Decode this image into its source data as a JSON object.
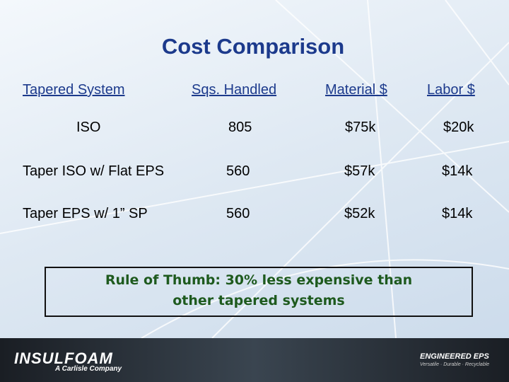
{
  "title": "Cost Comparison",
  "table": {
    "header": [
      "Tapered System",
      "Sqs. Handled",
      "Material $",
      "Labor $"
    ],
    "rows": [
      [
        "ISO",
        "805",
        "$75k",
        "$20k"
      ],
      [
        "Taper ISO w/ Flat EPS",
        "560",
        "$57k",
        "$14k"
      ],
      [
        "Taper EPS w/ 1” SP",
        "560",
        "$52k",
        "$14k"
      ]
    ]
  },
  "callout": [
    "Rule of Thumb: 30% less expensive than",
    "other tapered systems"
  ],
  "footer": {
    "left_logo": "INSULFOAM",
    "left_tagline": "A Carlisle Company",
    "right_logo": "ENGINEERED EPS",
    "right_tagline": "Versatile · Durable · Recyclable"
  }
}
